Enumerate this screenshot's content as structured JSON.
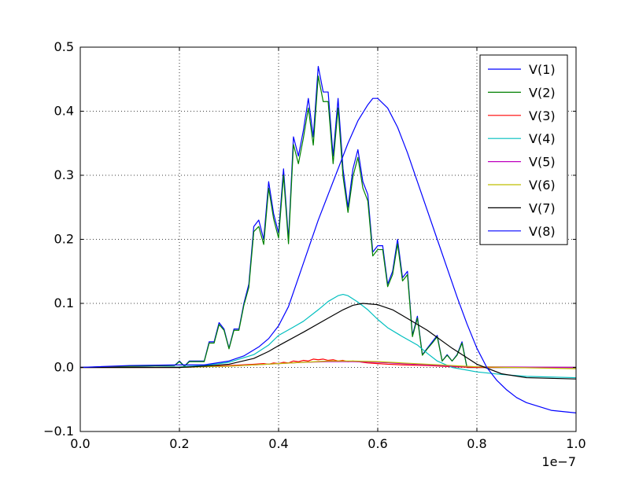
{
  "chart_data": {
    "type": "line",
    "title": "",
    "xlabel": "",
    "ylabel": "",
    "x_offset_label": "1e−7",
    "xlim": [
      0.0,
      1.0
    ],
    "ylim": [
      -0.1,
      0.5
    ],
    "xticks": [
      0.0,
      0.2,
      0.4,
      0.6,
      0.8,
      1.0
    ],
    "xtick_labels": [
      "0.0",
      "0.2",
      "0.4",
      "0.6",
      "0.8",
      "1.0"
    ],
    "yticks": [
      -0.1,
      0.0,
      0.1,
      0.2,
      0.3,
      0.4,
      0.5
    ],
    "ytick_labels": [
      "−0.1",
      "0.0",
      "0.1",
      "0.2",
      "0.3",
      "0.4",
      "0.5"
    ],
    "grid": true,
    "legend_position": "top-right",
    "series": [
      {
        "name": "V(1)",
        "color": "#0000ff",
        "x": [
          0.0,
          0.1,
          0.19,
          0.2,
          0.21,
          0.22,
          0.25,
          0.26,
          0.27,
          0.28,
          0.29,
          0.3,
          0.31,
          0.32,
          0.33,
          0.34,
          0.35,
          0.36,
          0.37,
          0.38,
          0.39,
          0.4,
          0.41,
          0.42,
          0.43,
          0.44,
          0.45,
          0.46,
          0.47,
          0.48,
          0.49,
          0.5,
          0.51,
          0.52,
          0.53,
          0.54,
          0.55,
          0.56,
          0.57,
          0.58,
          0.59,
          0.6,
          0.61,
          0.62,
          0.63,
          0.64,
          0.65,
          0.66,
          0.67,
          0.68,
          0.69,
          0.7,
          0.71,
          0.72,
          0.73,
          0.74,
          0.75,
          0.76,
          0.77,
          0.78,
          0.79,
          0.8,
          1.0
        ],
        "y": [
          0.0,
          0.002,
          0.003,
          0.01,
          0.002,
          0.01,
          0.01,
          0.04,
          0.04,
          0.07,
          0.06,
          0.03,
          0.06,
          0.06,
          0.1,
          0.13,
          0.22,
          0.23,
          0.2,
          0.29,
          0.24,
          0.21,
          0.31,
          0.2,
          0.36,
          0.33,
          0.37,
          0.42,
          0.36,
          0.47,
          0.43,
          0.43,
          0.33,
          0.42,
          0.31,
          0.25,
          0.31,
          0.34,
          0.29,
          0.27,
          0.18,
          0.19,
          0.19,
          0.13,
          0.15,
          0.2,
          0.14,
          0.15,
          0.05,
          0.08,
          0.02,
          0.03,
          0.04,
          0.05,
          0.01,
          0.02,
          0.01,
          0.02,
          0.04,
          0.0,
          0.0,
          0.0,
          0.0
        ]
      },
      {
        "name": "V(2)",
        "color": "#008000",
        "x": [
          0.0,
          0.1,
          0.19,
          0.2,
          0.21,
          0.22,
          0.25,
          0.26,
          0.27,
          0.28,
          0.29,
          0.3,
          0.31,
          0.32,
          0.33,
          0.34,
          0.35,
          0.36,
          0.37,
          0.38,
          0.39,
          0.4,
          0.41,
          0.42,
          0.43,
          0.44,
          0.45,
          0.46,
          0.47,
          0.48,
          0.49,
          0.5,
          0.51,
          0.52,
          0.53,
          0.54,
          0.55,
          0.56,
          0.57,
          0.58,
          0.59,
          0.6,
          0.61,
          0.62,
          0.63,
          0.64,
          0.65,
          0.66,
          0.67,
          0.68,
          0.69,
          0.7,
          0.71,
          0.72,
          0.73,
          0.74,
          0.75,
          0.76,
          0.77,
          0.78,
          0.79,
          0.8,
          1.0
        ],
        "y": [
          0.0,
          0.002,
          0.003,
          0.009,
          0.002,
          0.009,
          0.009,
          0.038,
          0.038,
          0.067,
          0.058,
          0.029,
          0.058,
          0.058,
          0.097,
          0.125,
          0.212,
          0.22,
          0.192,
          0.28,
          0.232,
          0.202,
          0.3,
          0.193,
          0.348,
          0.318,
          0.358,
          0.405,
          0.347,
          0.455,
          0.415,
          0.415,
          0.318,
          0.405,
          0.298,
          0.242,
          0.298,
          0.328,
          0.28,
          0.26,
          0.174,
          0.184,
          0.184,
          0.126,
          0.145,
          0.193,
          0.135,
          0.145,
          0.048,
          0.077,
          0.019,
          0.029,
          0.038,
          0.048,
          0.01,
          0.019,
          0.01,
          0.019,
          0.038,
          0.0,
          0.0,
          0.0,
          0.0
        ]
      },
      {
        "name": "V(3)",
        "color": "#ff0000",
        "x": [
          0.0,
          0.2,
          0.3,
          0.35,
          0.37,
          0.38,
          0.39,
          0.4,
          0.41,
          0.42,
          0.43,
          0.44,
          0.45,
          0.46,
          0.47,
          0.48,
          0.49,
          0.5,
          0.51,
          0.52,
          0.53,
          0.54,
          0.55,
          0.56,
          0.57,
          0.58,
          0.6,
          0.62,
          0.65,
          0.7,
          0.75,
          0.8,
          1.0
        ],
        "y": [
          0.0,
          0.0,
          0.003,
          0.005,
          0.006,
          0.005,
          0.007,
          0.006,
          0.008,
          0.007,
          0.01,
          0.009,
          0.011,
          0.01,
          0.013,
          0.012,
          0.013,
          0.011,
          0.012,
          0.01,
          0.011,
          0.009,
          0.01,
          0.009,
          0.008,
          0.007,
          0.006,
          0.005,
          0.004,
          0.003,
          0.001,
          0.0,
          0.0
        ]
      },
      {
        "name": "V(4)",
        "color": "#00bfbf",
        "x": [
          0.0,
          0.1,
          0.2,
          0.25,
          0.3,
          0.35,
          0.38,
          0.4,
          0.43,
          0.45,
          0.48,
          0.5,
          0.52,
          0.53,
          0.54,
          0.56,
          0.58,
          0.6,
          0.62,
          0.65,
          0.68,
          0.7,
          0.72,
          0.75,
          0.8,
          0.85,
          0.9,
          1.0
        ],
        "y": [
          0.0,
          0.0,
          0.001,
          0.003,
          0.008,
          0.02,
          0.035,
          0.05,
          0.063,
          0.072,
          0.09,
          0.103,
          0.112,
          0.114,
          0.112,
          0.102,
          0.09,
          0.075,
          0.062,
          0.048,
          0.035,
          0.022,
          0.01,
          0.0,
          -0.007,
          -0.011,
          -0.014,
          -0.016
        ]
      },
      {
        "name": "V(5)",
        "color": "#bf00bf",
        "x": [
          0.0,
          0.2,
          0.3,
          0.4,
          0.45,
          0.5,
          0.55,
          0.6,
          0.65,
          0.7,
          0.75,
          0.8,
          1.0
        ],
        "y": [
          0.0,
          0.0,
          0.002,
          0.006,
          0.008,
          0.009,
          0.009,
          0.008,
          0.006,
          0.004,
          0.002,
          0.001,
          0.0
        ]
      },
      {
        "name": "V(6)",
        "color": "#bfbf00",
        "x": [
          0.0,
          0.2,
          0.3,
          0.4,
          0.45,
          0.5,
          0.55,
          0.6,
          0.65,
          0.7,
          0.75,
          0.8,
          1.0
        ],
        "y": [
          0.0,
          0.0,
          0.002,
          0.006,
          0.008,
          0.01,
          0.01,
          0.009,
          0.007,
          0.005,
          0.003,
          0.001,
          -0.002
        ]
      },
      {
        "name": "V(7)",
        "color": "#000000",
        "x": [
          0.0,
          0.2,
          0.25,
          0.3,
          0.35,
          0.38,
          0.4,
          0.45,
          0.5,
          0.53,
          0.55,
          0.57,
          0.6,
          0.63,
          0.65,
          0.7,
          0.75,
          0.8,
          0.85,
          0.9,
          1.0
        ],
        "y": [
          0.0,
          0.0,
          0.002,
          0.005,
          0.014,
          0.025,
          0.034,
          0.055,
          0.077,
          0.09,
          0.097,
          0.1,
          0.098,
          0.09,
          0.081,
          0.058,
          0.03,
          0.005,
          -0.01,
          -0.016,
          -0.018
        ]
      },
      {
        "name": "V(8)",
        "color": "#0000ff",
        "x": [
          0.0,
          0.1,
          0.2,
          0.25,
          0.3,
          0.33,
          0.36,
          0.38,
          0.4,
          0.42,
          0.44,
          0.46,
          0.48,
          0.5,
          0.52,
          0.54,
          0.56,
          0.58,
          0.59,
          0.6,
          0.62,
          0.64,
          0.66,
          0.68,
          0.7,
          0.72,
          0.74,
          0.76,
          0.78,
          0.8,
          0.82,
          0.84,
          0.86,
          0.88,
          0.9,
          0.95,
          1.0
        ],
        "y": [
          0.0,
          0.003,
          0.004,
          0.004,
          0.01,
          0.018,
          0.032,
          0.045,
          0.065,
          0.095,
          0.14,
          0.185,
          0.23,
          0.27,
          0.31,
          0.35,
          0.385,
          0.41,
          0.42,
          0.42,
          0.405,
          0.375,
          0.335,
          0.29,
          0.245,
          0.2,
          0.155,
          0.11,
          0.068,
          0.03,
          0.0,
          -0.02,
          -0.035,
          -0.047,
          -0.055,
          -0.067,
          -0.071
        ]
      }
    ]
  }
}
